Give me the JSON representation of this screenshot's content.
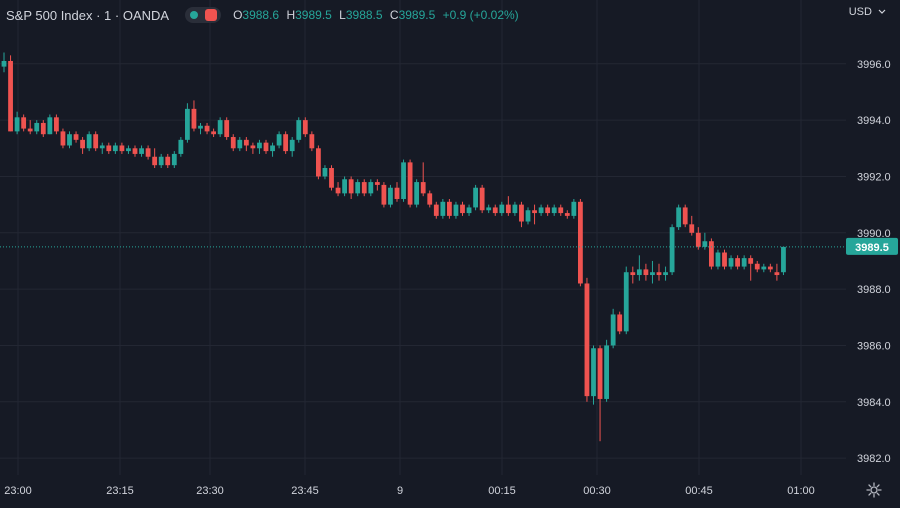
{
  "header": {
    "symbol": "S&P 500 Index · 1 · OANDA",
    "o_label": "O",
    "o": "3988.6",
    "h_label": "H",
    "h": "3989.5",
    "l_label": "L",
    "l": "3988.5",
    "c_label": "C",
    "c": "3989.5",
    "change": "+0.9 (+0.02%)"
  },
  "currency": "USD",
  "currency_icon": "chevron-down-icon",
  "settings_icon": "gear-icon",
  "colors": {
    "bg": "#161a25",
    "up": "#26a69a",
    "down": "#ef5350",
    "grid": "#232733",
    "text": "#d1d4dc"
  },
  "chart_data": {
    "type": "candlestick",
    "grid": true,
    "ylim": [
      3981.4,
      3997.2
    ],
    "y_ticks": [
      "3996.0",
      "3994.0",
      "3992.0",
      "3990.0",
      "3988.0",
      "3986.0",
      "3984.0",
      "3982.0"
    ],
    "x_ticks": [
      "23:00",
      "23:15",
      "23:30",
      "23:45",
      "9",
      "00:15",
      "00:30",
      "00:45",
      "01:00"
    ],
    "last_price": "3989.5",
    "candles": [
      [
        3995.9,
        3996.4,
        3995.7,
        3996.1
      ],
      [
        3996.1,
        3996.3,
        3993.6,
        3993.6
      ],
      [
        3993.6,
        3994.3,
        3993.5,
        3994.1
      ],
      [
        3994.1,
        3994.2,
        3993.6,
        3993.7
      ],
      [
        3993.7,
        3994.0,
        3993.5,
        3993.6
      ],
      [
        3993.6,
        3994.0,
        3993.5,
        3993.9
      ],
      [
        3993.9,
        3994.0,
        3993.4,
        3993.5
      ],
      [
        3993.5,
        3994.2,
        3993.5,
        3994.1
      ],
      [
        3994.1,
        3994.2,
        3993.5,
        3993.6
      ],
      [
        3993.6,
        3993.7,
        3993.0,
        3993.1
      ],
      [
        3993.1,
        3993.6,
        3993.0,
        3993.5
      ],
      [
        3993.5,
        3993.6,
        3993.2,
        3993.3
      ],
      [
        3993.3,
        3993.4,
        3992.8,
        3993.0
      ],
      [
        3993.0,
        3993.6,
        3992.9,
        3993.5
      ],
      [
        3993.5,
        3993.6,
        3992.9,
        3993.0
      ],
      [
        3993.0,
        3993.2,
        3992.8,
        3993.1
      ],
      [
        3993.1,
        3993.2,
        3992.8,
        3992.9
      ],
      [
        3992.9,
        3993.2,
        3992.8,
        3993.1
      ],
      [
        3993.1,
        3993.2,
        3992.8,
        3992.9
      ],
      [
        3992.9,
        3993.1,
        3992.8,
        3993.0
      ],
      [
        3993.0,
        3993.1,
        3992.7,
        3992.8
      ],
      [
        3992.8,
        3993.1,
        3992.7,
        3993.0
      ],
      [
        3993.0,
        3993.1,
        3992.6,
        3992.7
      ],
      [
        3992.7,
        3993.0,
        3992.3,
        3992.4
      ],
      [
        3992.4,
        3992.8,
        3992.3,
        3992.7
      ],
      [
        3992.7,
        3992.8,
        3992.3,
        3992.4
      ],
      [
        3992.4,
        3992.9,
        3992.3,
        3992.8
      ],
      [
        3992.8,
        3993.4,
        3992.7,
        3993.3
      ],
      [
        3993.3,
        3994.6,
        3993.2,
        3994.4
      ],
      [
        3994.4,
        3994.7,
        3993.6,
        3993.7
      ],
      [
        3993.7,
        3993.9,
        3993.5,
        3993.8
      ],
      [
        3993.8,
        3993.9,
        3993.5,
        3993.6
      ],
      [
        3993.6,
        3993.7,
        3993.4,
        3993.5
      ],
      [
        3993.5,
        3994.1,
        3993.4,
        3994.0
      ],
      [
        3994.0,
        3994.1,
        3993.3,
        3993.4
      ],
      [
        3993.4,
        3993.5,
        3992.9,
        3993.0
      ],
      [
        3993.0,
        3993.4,
        3992.9,
        3993.3
      ],
      [
        3993.3,
        3993.4,
        3992.9,
        3993.1
      ],
      [
        3993.1,
        3993.2,
        3992.8,
        3993.0
      ],
      [
        3993.0,
        3993.3,
        3992.8,
        3993.2
      ],
      [
        3993.2,
        3993.3,
        3992.8,
        3992.9
      ],
      [
        3992.9,
        3993.2,
        3992.7,
        3993.1
      ],
      [
        3993.1,
        3993.6,
        3993.0,
        3993.5
      ],
      [
        3993.5,
        3993.6,
        3992.8,
        3992.9
      ],
      [
        3992.9,
        3993.4,
        3992.7,
        3993.3
      ],
      [
        3993.3,
        3994.1,
        3993.2,
        3994.0
      ],
      [
        3994.0,
        3994.1,
        3993.4,
        3993.5
      ],
      [
        3993.5,
        3993.6,
        3992.9,
        3993.0
      ],
      [
        3993.0,
        3993.1,
        3991.9,
        3992.0
      ],
      [
        3992.0,
        3992.4,
        3991.9,
        3992.3
      ],
      [
        3992.3,
        3992.4,
        3991.5,
        3991.6
      ],
      [
        3991.6,
        3991.8,
        3991.3,
        3991.4
      ],
      [
        3991.4,
        3992.0,
        3991.3,
        3991.9
      ],
      [
        3991.9,
        3992.0,
        3991.2,
        3991.4
      ],
      [
        3991.4,
        3991.9,
        3991.3,
        3991.8
      ],
      [
        3991.8,
        3991.9,
        3991.3,
        3991.4
      ],
      [
        3991.4,
        3991.9,
        3991.3,
        3991.8
      ],
      [
        3991.8,
        3991.9,
        3991.5,
        3991.7
      ],
      [
        3991.7,
        3991.8,
        3990.9,
        3991.0
      ],
      [
        3991.0,
        3991.7,
        3990.9,
        3991.6
      ],
      [
        3991.6,
        3991.8,
        3991.1,
        3991.2
      ],
      [
        3991.2,
        3992.6,
        3991.1,
        3992.5
      ],
      [
        3992.5,
        3992.6,
        3990.9,
        3991.0
      ],
      [
        3991.0,
        3991.9,
        3990.9,
        3991.8
      ],
      [
        3991.8,
        3992.5,
        3991.3,
        3991.4
      ],
      [
        3991.4,
        3991.5,
        3990.9,
        3991.0
      ],
      [
        3991.0,
        3991.1,
        3990.5,
        3990.6
      ],
      [
        3990.6,
        3991.2,
        3990.5,
        3991.1
      ],
      [
        3991.1,
        3991.2,
        3990.5,
        3990.6
      ],
      [
        3990.6,
        3991.1,
        3990.5,
        3991.0
      ],
      [
        3991.0,
        3991.1,
        3990.6,
        3990.7
      ],
      [
        3990.7,
        3991.0,
        3990.6,
        3990.9
      ],
      [
        3990.9,
        3991.7,
        3990.8,
        3991.6
      ],
      [
        3991.6,
        3991.7,
        3990.7,
        3990.8
      ],
      [
        3990.8,
        3991.0,
        3990.7,
        3990.9
      ],
      [
        3990.9,
        3991.0,
        3990.6,
        3990.7
      ],
      [
        3990.7,
        3991.1,
        3990.6,
        3991.0
      ],
      [
        3991.0,
        3991.3,
        3990.6,
        3990.7
      ],
      [
        3990.7,
        3991.1,
        3990.6,
        3991.0
      ],
      [
        3991.0,
        3991.1,
        3990.2,
        3990.4
      ],
      [
        3990.4,
        3990.9,
        3990.3,
        3990.8
      ],
      [
        3990.8,
        3991.0,
        3990.3,
        3990.7
      ],
      [
        3990.7,
        3991.0,
        3990.6,
        3990.9
      ],
      [
        3990.9,
        3991.0,
        3990.6,
        3990.7
      ],
      [
        3990.7,
        3991.0,
        3990.6,
        3990.9
      ],
      [
        3990.9,
        3991.0,
        3990.6,
        3990.7
      ],
      [
        3990.7,
        3990.8,
        3990.5,
        3990.6
      ],
      [
        3990.6,
        3991.2,
        3990.5,
        3991.1
      ],
      [
        3991.1,
        3991.2,
        3988.1,
        3988.2
      ],
      [
        3988.2,
        3988.4,
        3984.0,
        3984.2
      ],
      [
        3984.2,
        3986.0,
        3983.9,
        3985.9
      ],
      [
        3985.9,
        3986.0,
        3982.6,
        3984.1
      ],
      [
        3984.1,
        3986.2,
        3984.0,
        3986.0
      ],
      [
        3986.0,
        3987.3,
        3985.9,
        3987.1
      ],
      [
        3987.1,
        3987.2,
        3986.4,
        3986.5
      ],
      [
        3986.5,
        3988.8,
        3986.4,
        3988.6
      ],
      [
        3988.6,
        3988.8,
        3988.2,
        3988.5
      ],
      [
        3988.5,
        3989.2,
        3988.3,
        3988.7
      ],
      [
        3988.7,
        3988.9,
        3988.3,
        3988.5
      ],
      [
        3988.5,
        3989.0,
        3988.2,
        3988.6
      ],
      [
        3988.6,
        3988.9,
        3988.3,
        3988.5
      ],
      [
        3988.5,
        3988.8,
        3988.3,
        3988.6
      ],
      [
        3988.6,
        3990.3,
        3988.5,
        3990.2
      ],
      [
        3990.2,
        3991.0,
        3990.1,
        3990.9
      ],
      [
        3990.9,
        3991.0,
        3990.2,
        3990.3
      ],
      [
        3990.3,
        3990.6,
        3989.9,
        3990.0
      ],
      [
        3990.0,
        3990.2,
        3989.4,
        3989.5
      ],
      [
        3989.5,
        3990.0,
        3989.4,
        3989.7
      ],
      [
        3989.7,
        3989.8,
        3988.7,
        3988.8
      ],
      [
        3988.8,
        3989.4,
        3988.7,
        3989.3
      ],
      [
        3989.3,
        3989.4,
        3988.7,
        3988.8
      ],
      [
        3988.8,
        3989.2,
        3988.7,
        3989.1
      ],
      [
        3989.1,
        3989.2,
        3988.7,
        3988.8
      ],
      [
        3988.8,
        3989.2,
        3988.7,
        3989.1
      ],
      [
        3989.1,
        3989.2,
        3988.3,
        3988.9
      ],
      [
        3988.9,
        3989.0,
        3988.6,
        3988.7
      ],
      [
        3988.7,
        3988.9,
        3988.6,
        3988.8
      ],
      [
        3988.8,
        3988.9,
        3988.6,
        3988.7
      ],
      [
        3988.6,
        3988.9,
        3988.3,
        3988.5
      ],
      [
        3988.6,
        3989.5,
        3988.5,
        3989.5
      ]
    ]
  }
}
